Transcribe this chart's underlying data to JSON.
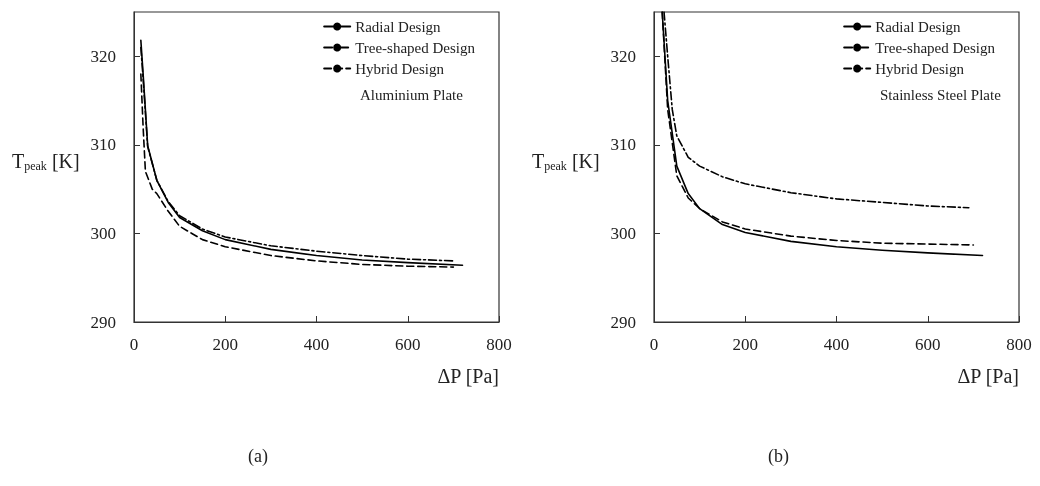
{
  "chart_data": [
    {
      "type": "line",
      "xlabel": "ΔP [Pa]",
      "ylabel": "T$_{peak}$ [K]",
      "xlim": [
        0,
        800
      ],
      "xticks": [
        0,
        200,
        400,
        600,
        800
      ],
      "ylim": [
        290,
        325
      ],
      "yticks": [
        290,
        300,
        310,
        320
      ],
      "grid": false,
      "legend": "top right",
      "marker": "none",
      "annotations": [
        "Aluminium Plate",
        "(a)"
      ],
      "series": [
        {
          "name": "Radial Design",
          "color": "#000000",
          "line_style": "solid",
          "x": [
            15,
            20,
            30,
            50,
            75,
            100,
            150,
            200,
            300,
            400,
            500,
            600,
            720
          ],
          "values": [
            321.8,
            318,
            309.9,
            306,
            303.5,
            301.8,
            300.3,
            299.3,
            298.2,
            297.5,
            297,
            296.7,
            296.4
          ]
        },
        {
          "name": "Tree-shaped Design",
          "color": "#000000",
          "line_style": "dashdot",
          "x": [
            15,
            20,
            30,
            50,
            75,
            100,
            150,
            200,
            300,
            400,
            500,
            600,
            700
          ],
          "values": [
            321,
            317.5,
            309.8,
            306,
            303.6,
            302,
            300.5,
            299.6,
            298.6,
            298,
            297.5,
            297.1,
            296.9
          ]
        },
        {
          "name": "Hybrid Design",
          "color": "#000000",
          "line_style": "dashed",
          "x": [
            15,
            20,
            25,
            40,
            50,
            75,
            100,
            150,
            200,
            300,
            400,
            500,
            600,
            700
          ],
          "values": [
            318,
            312,
            307,
            305,
            304.5,
            302.5,
            300.8,
            299.3,
            298.5,
            297.5,
            296.9,
            296.5,
            296.3,
            296.2
          ]
        }
      ]
    },
    {
      "type": "line",
      "xlabel": "ΔP [Pa]",
      "ylabel": "T$_{peak}$ [K]",
      "xlim": [
        0,
        800
      ],
      "xticks": [
        0,
        200,
        400,
        600,
        800
      ],
      "ylim": [
        290,
        325
      ],
      "yticks": [
        290,
        300,
        310,
        320
      ],
      "grid": false,
      "legend": "top right",
      "marker": "none",
      "annotations": [
        "Stainless Steel Plate",
        "(b)"
      ],
      "series": [
        {
          "name": "Radial Design",
          "color": "#000000",
          "line_style": "solid",
          "x": [
            18,
            30,
            50,
            75,
            100,
            150,
            200,
            300,
            400,
            500,
            600,
            720
          ],
          "values": [
            325,
            315,
            307.6,
            304.5,
            302.8,
            301,
            300.1,
            299.1,
            298.5,
            298.1,
            297.8,
            297.5
          ]
        },
        {
          "name": "Tree-shaped Design",
          "color": "#000000",
          "line_style": "dashdot",
          "x": [
            22,
            30,
            40,
            50,
            75,
            100,
            150,
            200,
            300,
            400,
            500,
            600,
            690
          ],
          "values": [
            325,
            320,
            314,
            311,
            308.6,
            307.6,
            306.4,
            305.6,
            304.6,
            303.9,
            303.5,
            303.1,
            302.9
          ]
        },
        {
          "name": "Hybrid Design",
          "color": "#000000",
          "line_style": "dashed",
          "x": [
            18,
            30,
            50,
            75,
            100,
            150,
            200,
            300,
            400,
            500,
            600,
            700
          ],
          "values": [
            325,
            314,
            306.5,
            304,
            302.8,
            301.3,
            300.5,
            299.7,
            299.2,
            298.9,
            298.8,
            298.7
          ]
        }
      ]
    }
  ]
}
